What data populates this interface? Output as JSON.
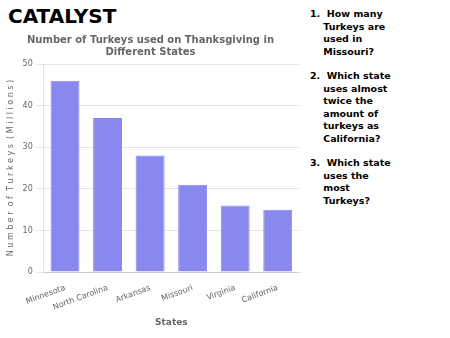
{
  "chart_data": {
    "type": "bar",
    "title": "Number of Turkeys used on Thanksgiving in Different States",
    "xlabel": "States",
    "ylabel": "N u m b e r  o f  T u r k e y s  ( M i l l i o n s )",
    "categories": [
      "Minnesota",
      "North Carolina",
      "Arkansas",
      "Missouri",
      "Virginia",
      "California"
    ],
    "values": [
      46,
      37,
      28,
      21,
      16,
      15
    ],
    "color": "#8888ee",
    "ylim": [
      0,
      50
    ],
    "yticks": [
      0,
      10,
      20,
      30,
      40,
      50
    ],
    "grid": true,
    "annotations": [
      "CATALYST",
      "1.  How many\n    Turkeys are\n    used in\n    Missouri?",
      "2.  Which state\n    uses almost\n    twice the\n    amount of\n    turkeys as\n    California?",
      "3.  Which state\n    uses the\n    most\n    Turkeys?"
    ]
  }
}
